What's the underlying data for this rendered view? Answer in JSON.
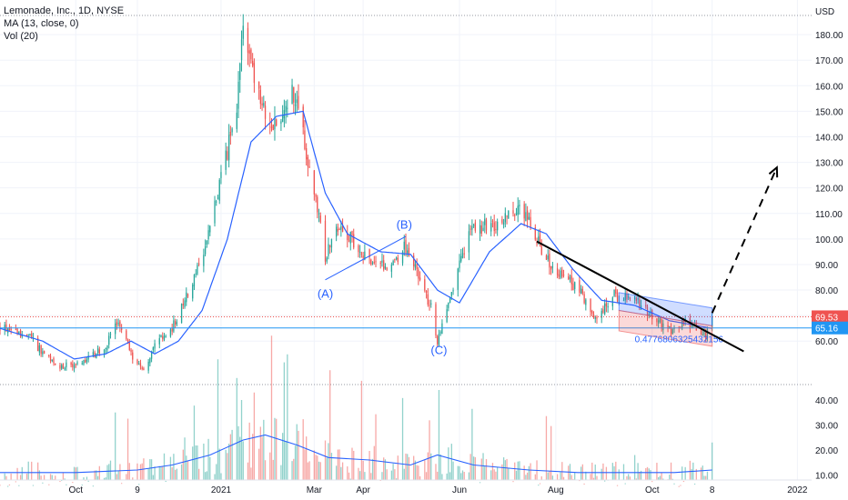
{
  "legend": {
    "symbol_line": "Lemonade, Inc., 1D, NYSE",
    "ma_line": "MA (13, close, 0)",
    "vol_line": "Vol (20)"
  },
  "chart_data": {
    "type": "candlestick",
    "symbol": "Lemonade, Inc.",
    "interval": "1D",
    "exchange": "NYSE",
    "currency": "USD",
    "price_axis": {
      "unit_label": "USD",
      "range": [
        43,
        190
      ],
      "ticks": [
        60,
        70,
        80,
        90,
        100,
        110,
        120,
        130,
        140,
        150,
        160,
        170,
        180
      ]
    },
    "volume_axis": {
      "range": [
        8,
        44
      ],
      "ticks": [
        10,
        20,
        30,
        40
      ]
    },
    "time_axis": {
      "labels": [
        "Oct",
        "9",
        "2021",
        "Mar",
        "Apr",
        "Jun",
        "Aug",
        "Oct",
        "8",
        "2022"
      ],
      "label_dates": [
        "2020-10-01",
        "2020-11-09",
        "2021-01-01",
        "2021-03-01",
        "2021-04-01",
        "2021-06-01",
        "2021-08-01",
        "2021-10-01",
        "2021-11-08",
        "2022-01-01"
      ],
      "range": [
        "2020-08-14",
        "2022-01-10"
      ]
    },
    "price_anchors": [
      [
        "2020-08-14",
        66
      ],
      [
        "2020-09-01",
        62
      ],
      [
        "2020-09-18",
        50
      ],
      [
        "2020-10-05",
        51
      ],
      [
        "2020-10-20",
        58
      ],
      [
        "2020-10-28",
        68
      ],
      [
        "2020-11-05",
        55
      ],
      [
        "2020-11-12",
        48
      ],
      [
        "2020-11-20",
        58
      ],
      [
        "2020-12-01",
        65
      ],
      [
        "2020-12-10",
        77
      ],
      [
        "2020-12-22",
        95
      ],
      [
        "2020-12-31",
        122
      ],
      [
        "2021-01-11",
        150
      ],
      [
        "2021-01-15",
        183
      ],
      [
        "2021-01-21",
        165
      ],
      [
        "2021-01-29",
        148
      ],
      [
        "2021-02-09",
        145
      ],
      [
        "2021-02-15",
        160
      ],
      [
        "2021-02-22",
        140
      ],
      [
        "2021-03-01",
        120
      ],
      [
        "2021-03-08",
        92
      ],
      [
        "2021-03-15",
        105
      ],
      [
        "2021-03-24",
        100
      ],
      [
        "2021-04-05",
        92
      ],
      [
        "2021-04-19",
        89
      ],
      [
        "2021-04-27",
        98
      ],
      [
        "2021-05-04",
        90
      ],
      [
        "2021-05-14",
        73
      ],
      [
        "2021-05-18",
        60
      ],
      [
        "2021-05-27",
        78
      ],
      [
        "2021-06-03",
        95
      ],
      [
        "2021-06-10",
        105
      ],
      [
        "2021-06-24",
        105
      ],
      [
        "2021-07-09",
        112
      ],
      [
        "2021-07-16",
        106
      ],
      [
        "2021-07-26",
        92
      ],
      [
        "2021-08-05",
        85
      ],
      [
        "2021-08-16",
        80
      ],
      [
        "2021-08-25",
        68
      ],
      [
        "2021-09-07",
        78
      ],
      [
        "2021-09-20",
        76
      ],
      [
        "2021-09-30",
        70
      ],
      [
        "2021-10-13",
        64
      ],
      [
        "2021-10-22",
        68
      ],
      [
        "2021-11-04",
        62
      ],
      [
        "2021-11-08",
        69.53
      ]
    ],
    "ma_anchors": [
      [
        "2020-08-14",
        65
      ],
      [
        "2020-09-10",
        60
      ],
      [
        "2020-09-30",
        53
      ],
      [
        "2020-10-20",
        55
      ],
      [
        "2020-11-05",
        60
      ],
      [
        "2020-11-20",
        55
      ],
      [
        "2020-12-05",
        60
      ],
      [
        "2020-12-20",
        72
      ],
      [
        "2021-01-05",
        100
      ],
      [
        "2021-01-20",
        138
      ],
      [
        "2021-02-05",
        148
      ],
      [
        "2021-02-22",
        150
      ],
      [
        "2021-03-08",
        118
      ],
      [
        "2021-03-22",
        102
      ],
      [
        "2021-04-12",
        95
      ],
      [
        "2021-05-01",
        94
      ],
      [
        "2021-05-18",
        80
      ],
      [
        "2021-06-01",
        75
      ],
      [
        "2021-06-20",
        95
      ],
      [
        "2021-07-10",
        106
      ],
      [
        "2021-07-26",
        102
      ],
      [
        "2021-08-12",
        88
      ],
      [
        "2021-08-30",
        76
      ],
      [
        "2021-09-20",
        74
      ],
      [
        "2021-10-12",
        68
      ],
      [
        "2021-11-08",
        65
      ]
    ],
    "volume_anchors": [
      [
        "2020-08-14",
        11
      ],
      [
        "2020-10-01",
        11
      ],
      [
        "2020-11-09",
        12
      ],
      [
        "2020-12-01",
        14
      ],
      [
        "2020-12-25",
        18
      ],
      [
        "2021-01-15",
        24
      ],
      [
        "2021-01-29",
        26
      ],
      [
        "2021-02-18",
        22
      ],
      [
        "2021-03-10",
        17
      ],
      [
        "2021-04-05",
        16
      ],
      [
        "2021-05-01",
        14
      ],
      [
        "2021-05-18",
        18
      ],
      [
        "2021-06-10",
        14
      ],
      [
        "2021-07-15",
        12
      ],
      [
        "2021-08-15",
        11
      ],
      [
        "2021-09-15",
        11
      ],
      [
        "2021-10-15",
        11
      ],
      [
        "2021-11-08",
        12
      ]
    ],
    "volume_spikes": [
      [
        "2020-12-09",
        25
      ],
      [
        "2021-01-14",
        40
      ],
      [
        "2021-01-22",
        43
      ],
      [
        "2021-05-19",
        44
      ],
      [
        "2021-11-08",
        23
      ]
    ],
    "last_price": 69.53,
    "horizontal_level": 65.16,
    "wave_labels": [
      {
        "text": "(A)",
        "date": "2021-03-08",
        "price": 77
      },
      {
        "text": "(B)",
        "date": "2021-04-27",
        "price": 104
      },
      {
        "text": "(C)",
        "date": "2021-05-19",
        "price": 55
      }
    ],
    "ab_line": [
      [
        "2021-03-08",
        84
      ],
      [
        "2021-04-28",
        101
      ]
    ],
    "trendline": [
      [
        "2021-07-20",
        99
      ],
      [
        "2021-11-28",
        56
      ]
    ],
    "projection_arrow": [
      [
        "2021-11-08",
        71
      ],
      [
        "2021-12-19",
        128
      ]
    ],
    "channel": {
      "upper_zone": [
        [
          "2021-09-10",
          79
        ],
        [
          "2021-11-08",
          73
        ],
        [
          "2021-11-08",
          66
        ],
        [
          "2021-09-10",
          72
        ]
      ],
      "lower_zone": [
        [
          "2021-09-10",
          72
        ],
        [
          "2021-11-08",
          66
        ],
        [
          "2021-11-08",
          58
        ],
        [
          "2021-09-10",
          64
        ]
      ],
      "stat_value": "0.4776806325432156",
      "stat_at": [
        "2021-09-20",
        59.5
      ]
    },
    "colors": {
      "up": "#26a69a",
      "down": "#ef5350",
      "ma": "#2962ff",
      "volume_ma": "#2962ff",
      "last_price_tag": "#ef5350",
      "level_tag": "#2196f3",
      "level_line": "#2196f3",
      "trendline": "#000000"
    }
  },
  "price_tags": {
    "last": "69.53",
    "level": "65.16"
  }
}
